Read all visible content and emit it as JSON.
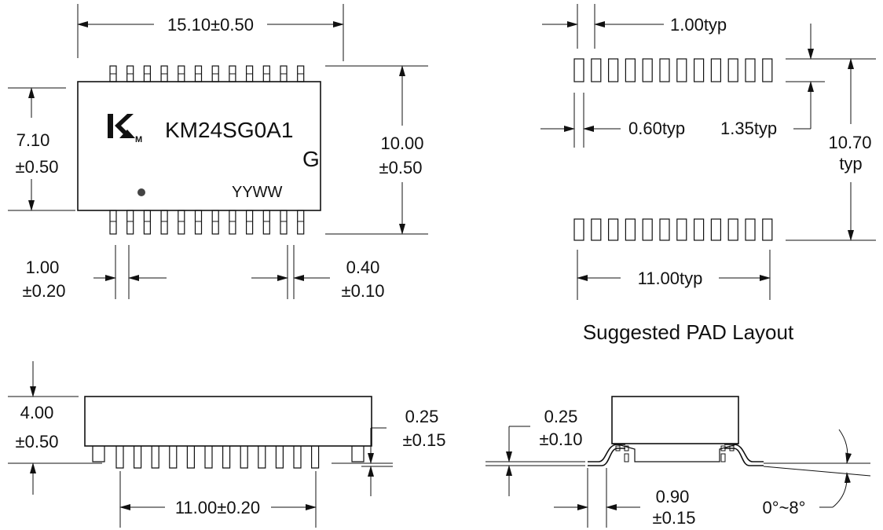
{
  "top_view": {
    "length": "15.10±0.50",
    "body_width": [
      "7.10",
      "±0.50"
    ],
    "overall_width": [
      "10.00",
      "±0.50"
    ],
    "pitch": [
      "1.00",
      "±0.20"
    ],
    "lead_width": [
      "0.40",
      "±0.10"
    ],
    "part_number": "KM24SG0A1",
    "grade": "G",
    "date_code": "YYWW",
    "logo": "KM-logo"
  },
  "pad_layout": {
    "caption": "Suggested PAD Layout",
    "pitch": "1.00typ",
    "pad_width": "0.60typ",
    "pad_length": "1.35typ",
    "span": [
      "10.70",
      "typ"
    ],
    "row_length": "11.00typ"
  },
  "side_view": {
    "height": [
      "4.00",
      "±0.50"
    ],
    "standoff": [
      "0.25",
      "±0.15"
    ],
    "lead_span": "11.00±0.20"
  },
  "end_view": {
    "lead_thickness": [
      "0.25",
      "±0.10"
    ],
    "foot_length": [
      "0.90",
      "±0.15"
    ],
    "angle": "0°~8°"
  }
}
